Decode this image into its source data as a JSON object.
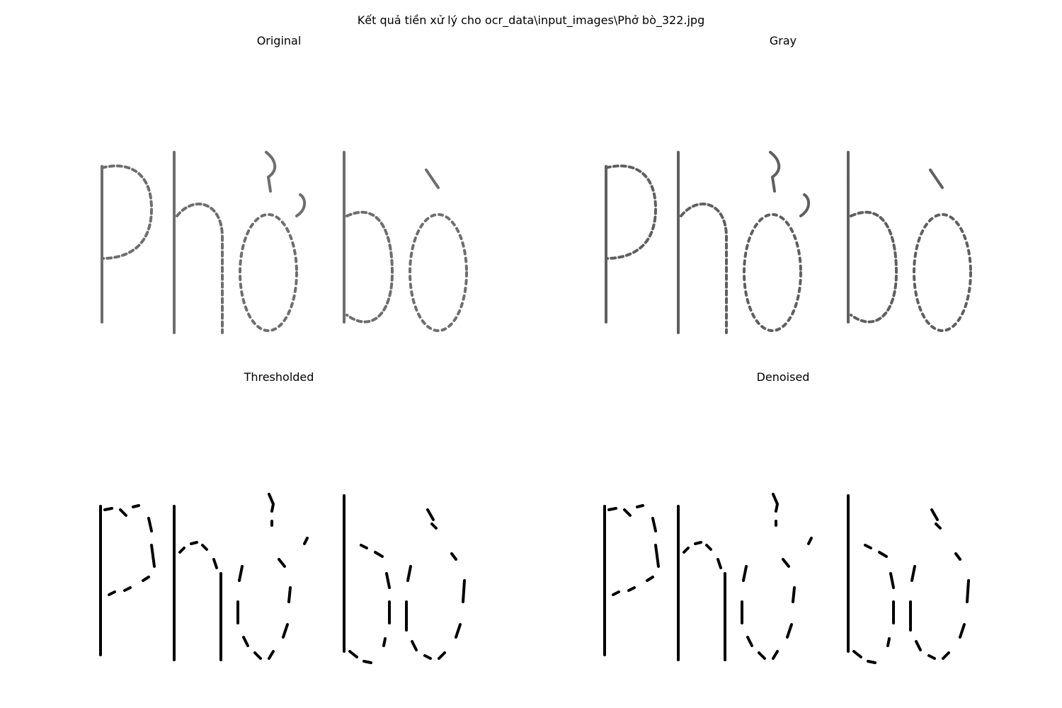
{
  "figure": {
    "title": "Kết quả tiền xử lý cho ocr_data\\input_images\\Phở bò_322.jpg"
  },
  "panels": [
    {
      "title": "Original",
      "image_text": "Phở bò",
      "style": "soft-gray"
    },
    {
      "title": "Gray",
      "image_text": "Phở bò",
      "style": "soft-gray"
    },
    {
      "title": "Thresholded",
      "image_text": "Phở bò",
      "style": "binary"
    },
    {
      "title": "Denoised",
      "image_text": "Phở bò",
      "style": "binary"
    }
  ],
  "colors": {
    "background": "#ffffff",
    "ink_gray": "#4a4a4a",
    "ink_binary": "#000000"
  }
}
